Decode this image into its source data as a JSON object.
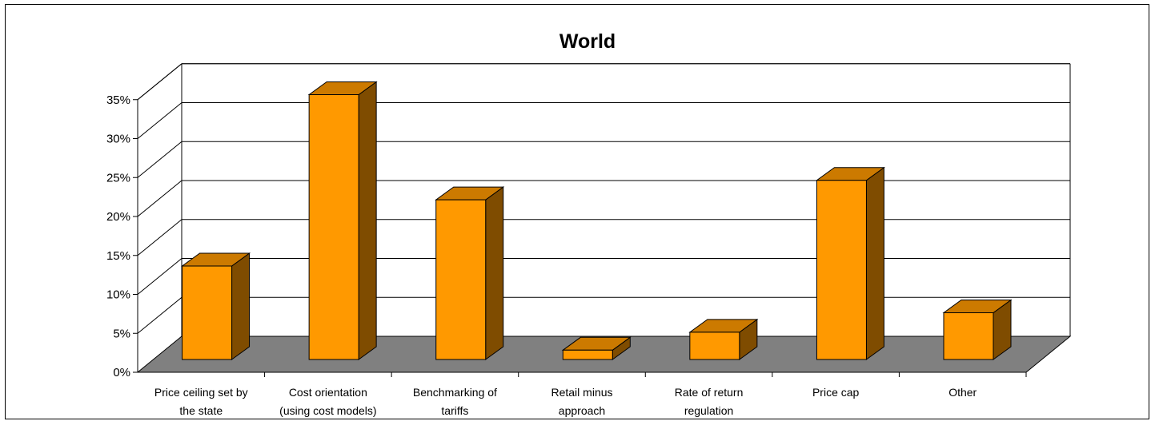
{
  "chart_data": {
    "type": "bar",
    "title": "World",
    "categories": [
      [
        "Price ceiling set by",
        "the state"
      ],
      [
        "Cost orientation",
        "(using cost models)"
      ],
      [
        "Benchmarking of",
        "tariffs"
      ],
      [
        "Retail minus",
        "approach"
      ],
      [
        "Rate of return",
        "regulation"
      ],
      [
        "Price cap"
      ],
      [
        "Other"
      ]
    ],
    "values": [
      12,
      34,
      20.5,
      1.2,
      3.5,
      23,
      6
    ],
    "yticks": [
      "0%",
      "5%",
      "10%",
      "15%",
      "20%",
      "25%",
      "30%",
      "35%"
    ],
    "ylim": [
      0,
      35
    ],
    "grid": true,
    "three_d": true,
    "colors": {
      "bar_front": "#FF9900",
      "bar_top": "#CC7A00",
      "bar_side": "#7F4C00",
      "floor": "#808080",
      "grid": "#000000"
    }
  }
}
